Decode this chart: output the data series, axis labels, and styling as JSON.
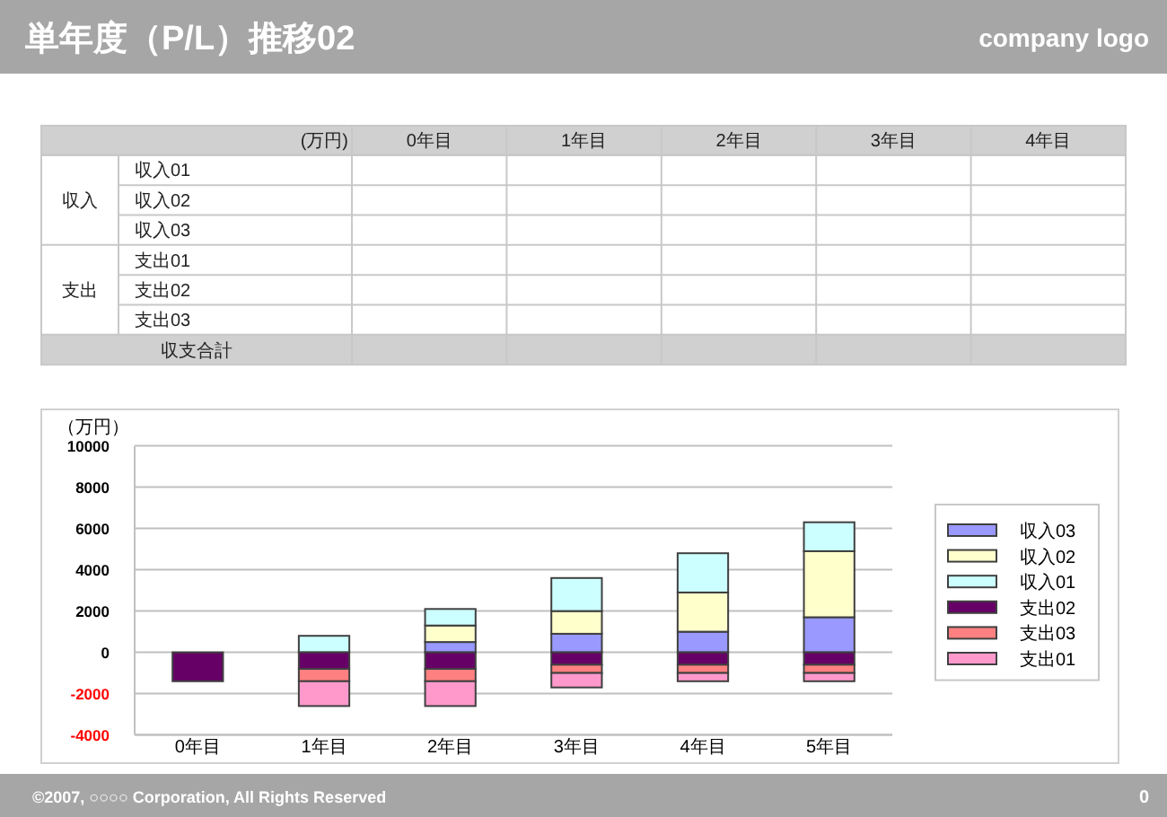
{
  "chart_data": [
    {
      "type": "heatmap",
      "title": "単年度（P/L）推移02",
      "categories": [
        "0年目",
        "1年目",
        "2年目",
        "3年目",
        "4年目"
      ],
      "y_categories": [
        "収入01",
        "収入02",
        "収入03",
        "支出01",
        "支出02",
        "支出03"
      ],
      "cells": [
        [
          null,
          null,
          null,
          null,
          null
        ],
        [
          null,
          null,
          null,
          null,
          null
        ],
        [
          null,
          null,
          null,
          null,
          null
        ],
        [
          null,
          null,
          null,
          null,
          null
        ],
        [
          null,
          null,
          null,
          null,
          null
        ],
        [
          null,
          null,
          null,
          null,
          null
        ]
      ],
      "annotations": [
        "company logo",
        "(万円)",
        "収入",
        "支出",
        "収支合計",
        "©2007, ○○○○ Corporation, All Rights Reserved",
        "0"
      ]
    },
    {
      "type": "bar",
      "stacked": true,
      "ylabel": "（万円）",
      "categories": [
        "0年目",
        "1年目",
        "2年目",
        "3年目",
        "4年目",
        "5年目"
      ],
      "series": [
        {
          "name": "収入03",
          "color": "#9999ff",
          "values": [
            null,
            null,
            500,
            900,
            1000,
            1700
          ]
        },
        {
          "name": "収入02",
          "color": "#ffffcc",
          "values": [
            null,
            null,
            800,
            1100,
            1900,
            3200
          ]
        },
        {
          "name": "収入01",
          "color": "#ccffff",
          "values": [
            null,
            800,
            800,
            1600,
            1900,
            1400
          ]
        },
        {
          "name": "支出02",
          "color": "#660066",
          "values": [
            -1400,
            -800,
            -800,
            -600,
            -600,
            -600
          ]
        },
        {
          "name": "支出03",
          "color": "#ff8080",
          "values": [
            null,
            -600,
            -600,
            -400,
            -400,
            -400
          ]
        },
        {
          "name": "支出01",
          "color": "#ff99cc",
          "values": [
            null,
            -1200,
            -1200,
            -700,
            -400,
            -400
          ]
        }
      ],
      "ylim": [
        -4000,
        10000
      ],
      "yticks": [
        -4000,
        -2000,
        0,
        2000,
        4000,
        6000,
        8000,
        10000
      ],
      "grid": "y",
      "legend": "right"
    }
  ]
}
